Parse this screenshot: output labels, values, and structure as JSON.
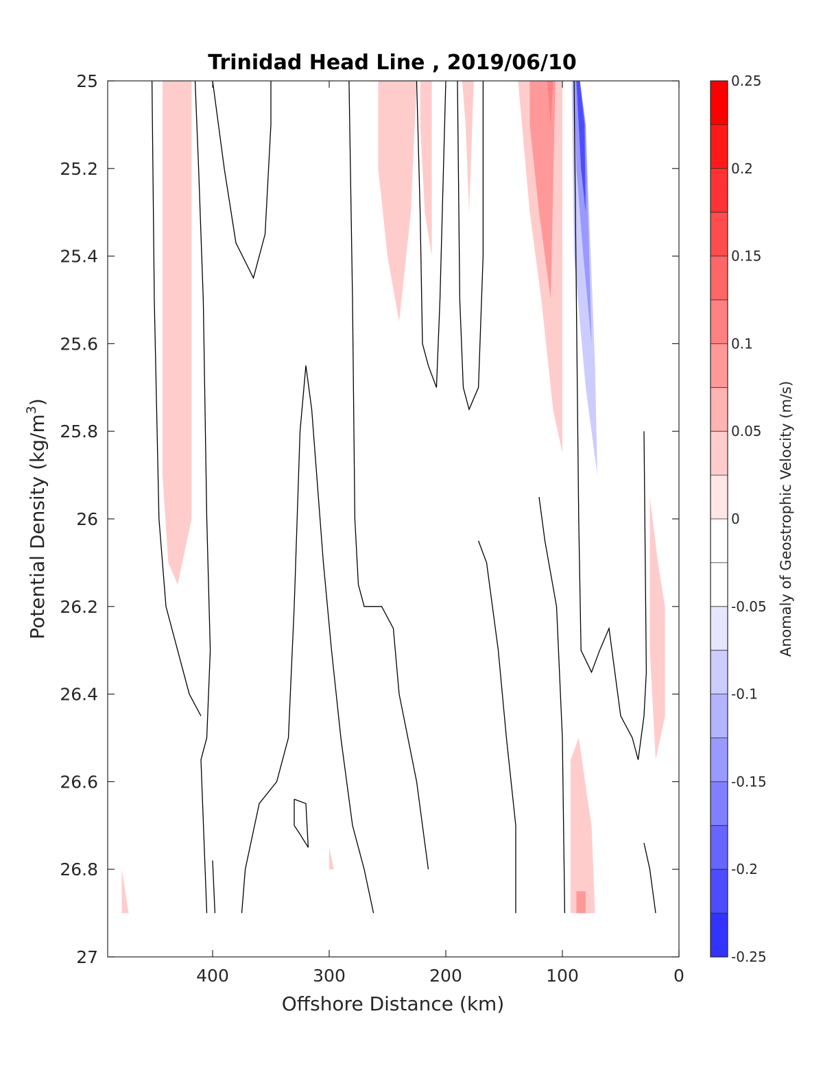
{
  "chart_data": {
    "type": "heatmap",
    "subtype": "filled contour section",
    "title": "Trinidad Head Line , 2019/06/10",
    "xlabel": "Offshore Distance (km)",
    "ylabel_main": "Potential Density (kg/m",
    "ylabel_sup": "3",
    "ylabel_tail": ")",
    "xlim": [
      490,
      0
    ],
    "ylim": [
      27,
      25
    ],
    "x_reversed": true,
    "y_reversed": true,
    "x_ticks": [
      400,
      300,
      200,
      100,
      0
    ],
    "y_ticks": [
      25,
      25.2,
      25.4,
      25.6,
      25.8,
      26,
      26.2,
      26.4,
      26.6,
      26.8,
      27
    ],
    "grid": false,
    "colorbar": {
      "label": "Anomaly of Geostrophic Velocity (m/s)",
      "range": [
        -0.25,
        0.25
      ],
      "ticks": [
        0.25,
        0.2,
        0.15,
        0.1,
        0.05,
        0,
        -0.05,
        -0.1,
        -0.15,
        -0.2,
        -0.25
      ],
      "levels": [
        0.25,
        0.225,
        0.2,
        0.175,
        0.15,
        0.125,
        0.1,
        0.075,
        0.05,
        0.025,
        0.0,
        -0.025,
        -0.05,
        -0.075,
        -0.1,
        -0.125,
        -0.15,
        -0.175,
        -0.2,
        -0.225,
        -0.25
      ],
      "colors": [
        "#ff0000",
        "#ff1a1a",
        "#ff3333",
        "#ff4d4d",
        "#ff6666",
        "#ff8080",
        "#ff9999",
        "#ffb3b3",
        "#ffcccc",
        "#ffe6e6",
        "#ffffff",
        "#ffffff",
        "#e6e6ff",
        "#ccccff",
        "#b3b3ff",
        "#9999ff",
        "#8080ff",
        "#6666ff",
        "#4d4dff",
        "#3333ff",
        "#1a1aff",
        "#0000ff"
      ]
    },
    "regions": [
      {
        "value": -0.04,
        "points": [
          [
            472,
            25.0
          ],
          [
            458,
            25.0
          ],
          [
            458,
            25.3
          ],
          [
            462,
            25.5
          ],
          [
            472,
            25.6
          ]
        ]
      },
      {
        "value": 0.04,
        "points": [
          [
            443,
            25.0
          ],
          [
            418,
            25.0
          ],
          [
            418,
            26.0
          ],
          [
            430,
            26.15
          ],
          [
            438,
            26.1
          ],
          [
            443,
            25.9
          ]
        ]
      },
      {
        "value": -0.04,
        "points": [
          [
            307,
            25.0
          ],
          [
            285,
            25.0
          ],
          [
            285,
            25.4
          ],
          [
            293,
            25.7
          ],
          [
            300,
            25.5
          ],
          [
            307,
            25.2
          ]
        ]
      },
      {
        "value": 0.04,
        "points": [
          [
            258,
            25.0
          ],
          [
            225,
            25.0
          ],
          [
            230,
            25.3
          ],
          [
            240,
            25.55
          ],
          [
            250,
            25.4
          ],
          [
            258,
            25.2
          ]
        ]
      },
      {
        "value": 0.04,
        "points": [
          [
            222,
            25.0
          ],
          [
            212,
            25.0
          ],
          [
            212,
            25.4
          ],
          [
            218,
            25.3
          ],
          [
            222,
            25.1
          ]
        ]
      },
      {
        "value": 0.04,
        "points": [
          [
            186,
            25.0
          ],
          [
            176,
            25.0
          ],
          [
            180,
            25.3
          ],
          [
            183,
            25.1
          ]
        ]
      },
      {
        "value": 0.04,
        "points": [
          [
            138,
            25.0
          ],
          [
            100,
            25.0
          ],
          [
            100,
            25.85
          ],
          [
            108,
            25.75
          ],
          [
            118,
            25.5
          ],
          [
            128,
            25.3
          ],
          [
            138,
            25.0
          ]
        ]
      },
      {
        "value": 0.09,
        "points": [
          [
            128,
            25.0
          ],
          [
            106,
            25.0
          ],
          [
            110,
            25.5
          ],
          [
            120,
            25.3
          ],
          [
            128,
            25.1
          ]
        ]
      },
      {
        "value": 0.12,
        "points": [
          [
            113,
            25.0
          ],
          [
            108,
            25.0
          ],
          [
            110,
            25.1
          ]
        ]
      },
      {
        "value": -0.04,
        "points": [
          [
            94,
            25.0
          ],
          [
            88,
            25.0
          ],
          [
            80,
            25.1
          ],
          [
            70,
            25.7
          ],
          [
            60,
            25.6
          ],
          [
            45,
            25.6
          ],
          [
            38,
            26.3
          ],
          [
            35,
            26.35
          ],
          [
            45,
            26.2
          ],
          [
            55,
            26.0
          ],
          [
            65,
            26.0
          ],
          [
            75,
            26.05
          ],
          [
            85,
            26.1
          ],
          [
            95,
            25.8
          ]
        ]
      },
      {
        "value": -0.09,
        "points": [
          [
            92,
            25.0
          ],
          [
            85,
            25.0
          ],
          [
            80,
            25.1
          ],
          [
            72,
            25.65
          ],
          [
            70,
            25.9
          ],
          [
            80,
            25.7
          ],
          [
            90,
            25.4
          ]
        ]
      },
      {
        "value": -0.15,
        "points": [
          [
            90,
            25.0
          ],
          [
            85,
            25.0
          ],
          [
            80,
            25.1
          ],
          [
            75,
            25.6
          ],
          [
            82,
            25.4
          ],
          [
            88,
            25.2
          ]
        ]
      },
      {
        "value": -0.22,
        "points": [
          [
            88,
            25.0
          ],
          [
            85,
            25.0
          ],
          [
            81,
            25.1
          ],
          [
            80,
            25.3
          ],
          [
            84,
            25.2
          ]
        ]
      },
      {
        "value": 0.04,
        "points": [
          [
            25,
            25.95
          ],
          [
            18,
            26.1
          ],
          [
            12,
            26.2
          ],
          [
            12,
            26.45
          ],
          [
            20,
            26.55
          ],
          [
            25,
            26.3
          ]
        ]
      },
      {
        "value": -0.04,
        "points": [
          [
            125,
            26.4
          ],
          [
            132,
            26.85
          ],
          [
            132,
            26.9
          ],
          [
            108,
            26.9
          ],
          [
            112,
            26.7
          ],
          [
            118,
            26.5
          ]
        ]
      },
      {
        "value": 0.04,
        "points": [
          [
            93,
            26.55
          ],
          [
            86,
            26.5
          ],
          [
            75,
            26.7
          ],
          [
            72,
            26.9
          ],
          [
            93,
            26.9
          ]
        ]
      },
      {
        "value": 0.09,
        "points": [
          [
            88,
            26.85
          ],
          [
            80,
            26.85
          ],
          [
            80,
            26.9
          ],
          [
            88,
            26.9
          ]
        ]
      },
      {
        "value": -0.04,
        "points": [
          [
            445,
            26.9
          ],
          [
            435,
            26.75
          ],
          [
            425,
            26.8
          ],
          [
            420,
            26.9
          ]
        ]
      },
      {
        "value": -0.04,
        "points": [
          [
            243,
            26.9
          ],
          [
            238,
            26.75
          ],
          [
            230,
            26.8
          ],
          [
            224,
            26.9
          ]
        ]
      },
      {
        "value": 0.04,
        "points": [
          [
            300,
            26.75
          ],
          [
            296,
            26.8
          ],
          [
            300,
            26.8
          ]
        ]
      },
      {
        "value": 0.04,
        "points": [
          [
            478,
            26.8
          ],
          [
            472,
            26.9
          ],
          [
            478,
            26.9
          ]
        ]
      },
      {
        "value": -0.04,
        "points": [
          [
            33,
            26.9
          ],
          [
            30,
            26.85
          ],
          [
            28,
            26.9
          ]
        ]
      }
    ],
    "contours": [
      [
        [
          452,
          25.0
        ],
        [
          450,
          25.5
        ],
        [
          446,
          26.0
        ],
        [
          440,
          26.2
        ],
        [
          430,
          26.3
        ],
        [
          420,
          26.4
        ],
        [
          410,
          26.45
        ]
      ],
      [
        [
          415,
          25.0
        ],
        [
          412,
          25.2
        ],
        [
          408,
          25.5
        ],
        [
          405,
          26.0
        ],
        [
          402,
          26.3
        ],
        [
          405,
          26.5
        ],
        [
          410,
          26.55
        ],
        [
          405,
          26.9
        ]
      ],
      [
        [
          400,
          25.0
        ],
        [
          395,
          25.1
        ],
        [
          390,
          25.2
        ],
        [
          380,
          25.37
        ],
        [
          365,
          25.45
        ],
        [
          355,
          25.35
        ],
        [
          350,
          25.1
        ],
        [
          350,
          25.0
        ]
      ],
      [
        [
          320,
          25.65
        ],
        [
          325,
          25.8
        ],
        [
          330,
          26.2
        ],
        [
          335,
          26.5
        ],
        [
          345,
          26.6
        ],
        [
          360,
          26.65
        ],
        [
          372,
          26.8
        ],
        [
          375,
          26.9
        ]
      ],
      [
        [
          320,
          25.65
        ],
        [
          315,
          25.75
        ],
        [
          305,
          26.1
        ],
        [
          298,
          26.3
        ],
        [
          290,
          26.5
        ],
        [
          280,
          26.7
        ],
        [
          270,
          26.8
        ],
        [
          262,
          26.9
        ]
      ],
      [
        [
          283,
          25.0
        ],
        [
          280,
          25.5
        ],
        [
          278,
          26.0
        ],
        [
          275,
          26.15
        ],
        [
          270,
          26.2
        ],
        [
          255,
          26.2
        ],
        [
          245,
          26.25
        ],
        [
          240,
          26.4
        ],
        [
          225,
          26.6
        ],
        [
          215,
          26.8
        ]
      ],
      [
        [
          225,
          25.0
        ],
        [
          222,
          25.3
        ],
        [
          220,
          25.6
        ],
        [
          215,
          25.65
        ],
        [
          208,
          25.7
        ],
        [
          205,
          25.5
        ],
        [
          200,
          25.0
        ]
      ],
      [
        [
          190,
          25.0
        ],
        [
          188,
          25.5
        ],
        [
          185,
          25.7
        ],
        [
          180,
          25.75
        ],
        [
          172,
          25.7
        ],
        [
          168,
          25.4
        ],
        [
          168,
          25.0
        ]
      ],
      [
        [
          172,
          26.05
        ],
        [
          165,
          26.1
        ],
        [
          155,
          26.3
        ],
        [
          148,
          26.5
        ],
        [
          140,
          26.7
        ],
        [
          140,
          26.9
        ]
      ],
      [
        [
          120,
          25.95
        ],
        [
          115,
          26.05
        ],
        [
          105,
          26.2
        ],
        [
          100,
          26.5
        ],
        [
          98,
          26.9
        ]
      ],
      [
        [
          90,
          25.0
        ],
        [
          88,
          25.5
        ],
        [
          86,
          26.0
        ],
        [
          84,
          26.3
        ],
        [
          75,
          26.35
        ],
        [
          68,
          26.3
        ],
        [
          60,
          26.25
        ],
        [
          50,
          26.45
        ],
        [
          40,
          26.5
        ],
        [
          35,
          26.55
        ],
        [
          30,
          26.45
        ],
        [
          28,
          26.35
        ],
        [
          30,
          25.8
        ]
      ],
      [
        [
          330,
          26.64
        ],
        [
          320,
          26.65
        ],
        [
          318,
          26.75
        ],
        [
          325,
          26.72
        ],
        [
          330,
          26.7
        ],
        [
          330,
          26.64
        ]
      ],
      [
        [
          400,
          26.78
        ],
        [
          398,
          26.9
        ]
      ],
      [
        [
          30,
          26.74
        ],
        [
          25,
          26.8
        ],
        [
          20,
          26.9
        ]
      ]
    ]
  }
}
